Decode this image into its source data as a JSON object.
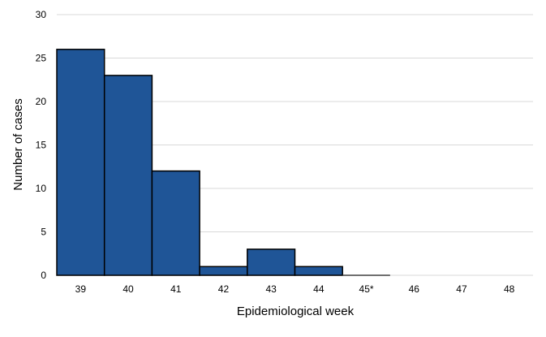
{
  "chart_data": {
    "type": "bar",
    "categories": [
      "39",
      "40",
      "41",
      "42",
      "43",
      "44",
      "45*",
      "46",
      "47",
      "48"
    ],
    "values": [
      26,
      23,
      12,
      1,
      3,
      1,
      0,
      0,
      0,
      0
    ],
    "xlabel": "Epidemiological week",
    "ylabel": "Number of cases",
    "ylim": [
      0,
      30
    ],
    "yticks": [
      0,
      5,
      10,
      15,
      20,
      25,
      30
    ],
    "grid": true,
    "legend": "none",
    "colors": {
      "bar": "#1f5597",
      "bar_outline": "#000000",
      "grid": "#d9d9d9"
    }
  }
}
